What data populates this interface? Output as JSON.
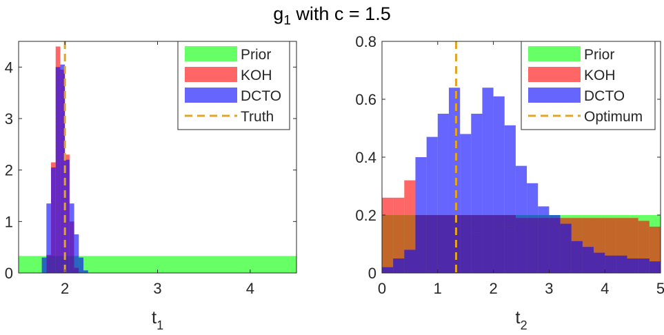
{
  "title": {
    "main": "g",
    "sub": "1",
    "rest": " with c = 1.5"
  },
  "colors": {
    "prior": "#00ff00",
    "koh": "#ff0000",
    "dcto": "#0000ff",
    "line": "#e0a526"
  },
  "chart_data": [
    {
      "type": "histogram",
      "xlabel": "t",
      "xlabel_sub": "1",
      "xlim": [
        1.5,
        4.5
      ],
      "ylim": [
        0,
        4.5
      ],
      "xticks": [
        2,
        3,
        4
      ],
      "yticks": [
        0,
        1,
        2,
        3,
        4
      ],
      "bin_width": 0.05,
      "series": [
        {
          "name": "Prior",
          "bins": [
            {
              "x0": 1.5,
              "x1": 4.5,
              "y": 0.33
            }
          ]
        },
        {
          "name": "KOH",
          "bins": [
            {
              "x0": 1.8,
              "x1": 1.85,
              "y": 0.35
            },
            {
              "x0": 1.85,
              "x1": 1.9,
              "y": 2.15
            },
            {
              "x0": 1.9,
              "x1": 1.95,
              "y": 4.4
            },
            {
              "x0": 1.95,
              "x1": 2.0,
              "y": 3.95
            },
            {
              "x0": 2.0,
              "x1": 2.05,
              "y": 2.3
            },
            {
              "x0": 2.05,
              "x1": 2.1,
              "y": 1.0
            },
            {
              "x0": 2.1,
              "x1": 2.15,
              "y": 0.1
            }
          ]
        },
        {
          "name": "DCTO",
          "bins": [
            {
              "x0": 1.75,
              "x1": 1.8,
              "y": 0.3
            },
            {
              "x0": 1.8,
              "x1": 1.85,
              "y": 1.35
            },
            {
              "x0": 1.85,
              "x1": 1.9,
              "y": 2.05
            },
            {
              "x0": 1.9,
              "x1": 1.95,
              "y": 4.0
            },
            {
              "x0": 1.95,
              "x1": 2.0,
              "y": 4.05
            },
            {
              "x0": 2.0,
              "x1": 2.05,
              "y": 2.2
            },
            {
              "x0": 2.05,
              "x1": 2.1,
              "y": 1.35
            },
            {
              "x0": 2.1,
              "x1": 2.15,
              "y": 0.75
            },
            {
              "x0": 2.15,
              "x1": 2.2,
              "y": 0.3
            },
            {
              "x0": 2.2,
              "x1": 2.25,
              "y": 0.05
            }
          ]
        }
      ],
      "vline": {
        "name": "Truth",
        "x": 2.0
      },
      "legend": {
        "placement": "top-right",
        "entries": [
          "Prior",
          "KOH",
          "DCTO",
          "Truth"
        ]
      }
    },
    {
      "type": "histogram",
      "xlabel": "t",
      "xlabel_sub": "2",
      "xlim": [
        0,
        5
      ],
      "ylim": [
        0,
        0.8
      ],
      "xticks": [
        0,
        1,
        2,
        3,
        4,
        5
      ],
      "yticks": [
        0,
        0.2,
        0.4,
        0.6,
        0.8
      ],
      "bin_width": 0.2,
      "series": [
        {
          "name": "Prior",
          "bins": [
            {
              "x0": 0,
              "x1": 5,
              "y": 0.2
            }
          ]
        },
        {
          "name": "KOH",
          "values": [
            0.26,
            0.26,
            0.32,
            0.2,
            0.2,
            0.2,
            0.2,
            0.2,
            0.2,
            0.2,
            0.2,
            0.2,
            0.19,
            0.19,
            0.19,
            0.19,
            0.19,
            0.19,
            0.19,
            0.19,
            0.19,
            0.19,
            0.19,
            0.18,
            0.16
          ]
        },
        {
          "name": "DCTO",
          "values": [
            0.02,
            0.05,
            0.08,
            0.15,
            0.15,
            0.15,
            0.15,
            0.17,
            0.14,
            0.2,
            0.17,
            0.16,
            0.18,
            0.17,
            0.17,
            0.17,
            0.12,
            0.1,
            0.08,
            0.07,
            0.05,
            0.05,
            0.05,
            0.05,
            0.04
          ]
        },
        {
          "name": "DCTO_visible_top",
          "values": [
            0.02,
            0.05,
            0.08,
            0.4,
            0.47,
            0.55,
            0.64,
            0.48,
            0.55,
            0.64,
            0.61,
            0.51,
            0.37,
            0.31,
            0.23,
            0.2,
            0.17,
            0.11,
            0.09,
            0.07,
            0.06,
            0.06,
            0.05,
            0.05,
            0.04
          ]
        }
      ],
      "vline": {
        "name": "Optimum",
        "x": 1.33
      },
      "legend": {
        "placement": "top-right",
        "entries": [
          "Prior",
          "KOH",
          "DCTO",
          "Optimum"
        ]
      }
    }
  ]
}
